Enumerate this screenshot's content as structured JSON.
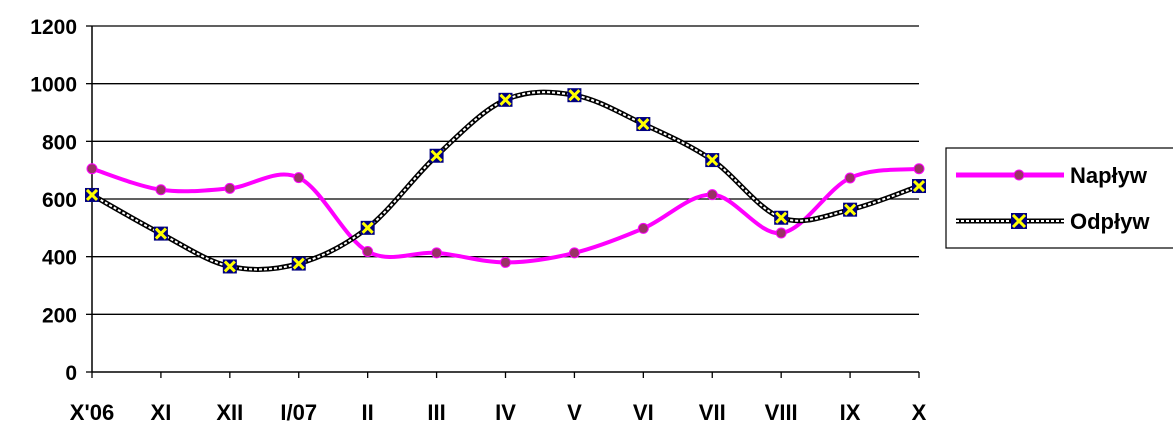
{
  "chart_data": {
    "type": "line",
    "categories": [
      "X'06",
      "XI",
      "XII",
      "I/07",
      "II",
      "III",
      "IV",
      "V",
      "VI",
      "VII",
      "VIII",
      "IX",
      "X"
    ],
    "ylim": [
      0,
      1200
    ],
    "yticks": [
      0,
      200,
      400,
      600,
      800,
      1000,
      1200
    ],
    "grid": true,
    "legend_position": "right",
    "smooth": true,
    "series": [
      {
        "name": "Napływ",
        "color": "#FF00FF",
        "marker": "circle",
        "marker_color": "#993366",
        "values": [
          705,
          632,
          637,
          674,
          418,
          413,
          380,
          413,
          498,
          615,
          482,
          673,
          705
        ]
      },
      {
        "name": "Odpływ",
        "color": "#000000",
        "line_style": "dotted-double",
        "marker": "x-square",
        "marker_color": "#000080",
        "marker_x_color": "#FFFF00",
        "values": [
          614,
          480,
          366,
          376,
          500,
          750,
          944,
          960,
          860,
          735,
          535,
          563,
          645
        ]
      }
    ]
  }
}
